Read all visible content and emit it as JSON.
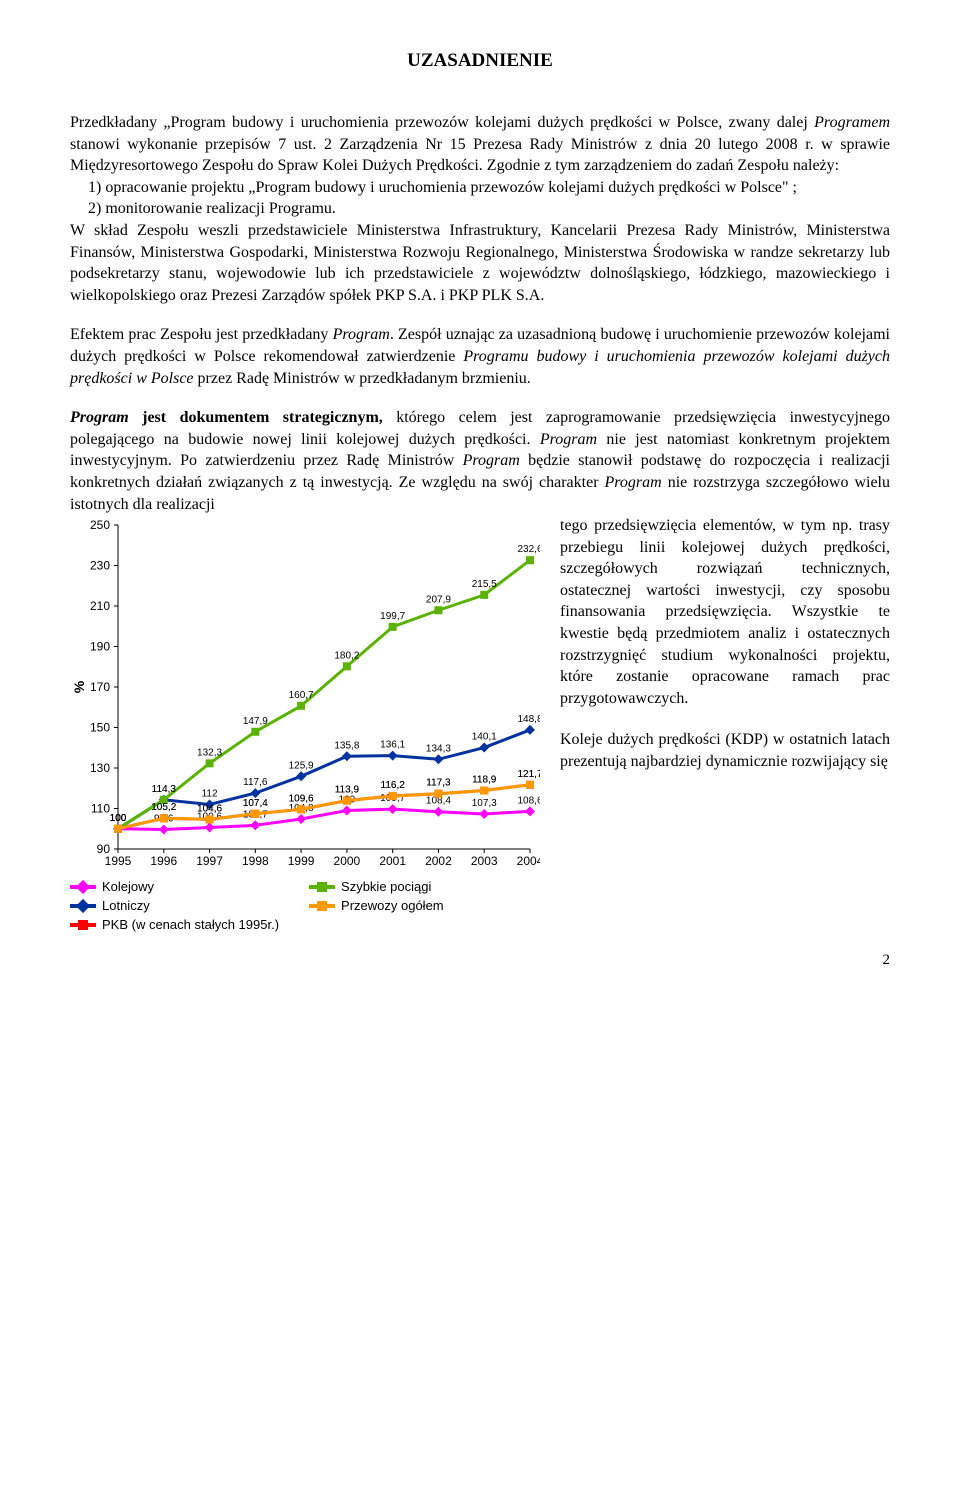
{
  "title": "UZASADNIENIE",
  "p1a": "Przedkładany „Program budowy i uruchomienia przewozów kolejami dużych prędkości w Polsce, zwany dalej ",
  "p1b": "Programem",
  "p1c": " stanowi wykonanie przepisów 7 ust. 2 Zarządzenia Nr 15 Prezesa Rady Ministrów z dnia 20 lutego 2008 r. w sprawie Międzyresortowego Zespołu do Spraw Kolei Dużych Prędkości. Zgodnie z tym zarządzeniem do zadań Zespołu należy:",
  "li1": "opracowanie projektu „Program budowy i uruchomienia przewozów kolejami dużych prędkości w Polsce\" ;",
  "li2": "monitorowanie realizacji Programu.",
  "p1d": "W skład Zespołu weszli przedstawiciele Ministerstwa Infrastruktury, Kancelarii Prezesa Rady Ministrów, Ministerstwa Finansów, Ministerstwa Gospodarki, Ministerstwa Rozwoju Regionalnego, Ministerstwa Środowiska w randze sekretarzy lub podsekretarzy stanu, wojewodowie lub ich przedstawiciele z województw dolnośląskiego, łódzkiego, mazowieckiego i wielkopolskiego oraz Prezesi Zarządów spółek PKP S.A. i PKP PLK S.A.",
  "p2a": "Efektem prac Zespołu jest przedkładany ",
  "p2b": "Program",
  "p2c": ". Zespół uznając za uzasadnioną budowę i uruchomienie przewozów kolejami  dużych prędkości w Polsce  rekomendował zatwierdzenie ",
  "p2d": "Programu budowy i uruchomienia przewozów kolejami dużych prędkości w Polsce",
  "p2e": " przez Radę Ministrów w przedkładanym  brzmieniu.",
  "p3a": "Program",
  "p3b": "  jest  dokumentem  strategicznym,",
  "p3c": "  którego  celem  jest  zaprogramowanie przedsięwzięcia  inwestycyjnego  polegającego  na  budowie  nowej  linii  kolejowej dużych prędkości. ",
  "p3d": "Program",
  "p3e": " nie jest natomiast konkretnym  projektem inwestycyjnym. Po zatwierdzeniu  przez  Radę  Ministrów  ",
  "p3f": "Program",
  "p3g": "  będzie  stanowił  podstawę do rozpoczęcia  i realizacji  konkretnych  działań  związanych  z tą inwestycją.  Ze względu na  swój   charakter ",
  "p3h": "Program",
  "p3i": "  nie  rozstrzyga  szczegółowo  wielu  istotnych  dla realizacji ",
  "side_a": "tego przedsięwzięcia elementów, w tym np. trasy przebiegu linii kolejowej dużych prędkości, szczegółowych rozwiązań technicznych, ostatecznej wartości inwestycji, czy sposobu finansowania przedsięwzięcia. Wszystkie te kwestie będą przedmiotem analiz i ostatecznych rozstrzygnięć studium wykonalności projektu, które zostanie opracowane ramach prac przygotowawczych.",
  "side_b": "Koleje dużych prędkości (KDP) w ostatnich latach prezentują najbardziej dynamicznie rozwijający się ",
  "page_num": "2",
  "chart": {
    "ylabel": "%",
    "ytick_min": 90,
    "ytick_max": 250,
    "ytick_step": 20,
    "x_labels": [
      "1995",
      "1996",
      "1997",
      "1998",
      "1999",
      "2000",
      "2001",
      "2002",
      "2003",
      "2004"
    ],
    "series": [
      {
        "name": "Kolejowy",
        "color": "#ff00ff",
        "marker": "diamond",
        "marker_color": "#ff00ff",
        "values": [
          100,
          99.6,
          100.6,
          101.7,
          104.8,
          109,
          109.7,
          108.4,
          107.3,
          108.6
        ]
      },
      {
        "name": "Lotniczy",
        "color": "#0033a0",
        "marker": "diamond",
        "marker_color": "#0033a0",
        "values": [
          100,
          114.3,
          112,
          117.6,
          125.9,
          135.8,
          136.1,
          134.3,
          140.1,
          148.8
        ]
      },
      {
        "name": "PKB (w cenach stałych 1995r.)",
        "color": "#ff0000",
        "marker": "square",
        "marker_color": "#ff0000",
        "values": [
          100,
          105.2,
          104.6,
          107.4,
          109.6,
          113.9,
          116.2,
          117.3,
          118.9,
          121.7
        ]
      },
      {
        "name": "Szybkie pociągi",
        "color": "#59b300",
        "marker": "square",
        "marker_color": "#59b300",
        "values": [
          100,
          114.3,
          132.3,
          147.9,
          160.7,
          180.2,
          199.7,
          207.9,
          215.5,
          232.6
        ]
      },
      {
        "name": "Przewozy ogółem",
        "color": "#ff9900",
        "marker": "square",
        "marker_color": "#ff9900",
        "values": [
          100,
          105.2,
          104.6,
          107.4,
          109.6,
          113.9,
          116.2,
          117.3,
          118.9,
          121.7
        ]
      }
    ],
    "legend_order": [
      "Kolejowy",
      "Szybkie pociągi",
      "Lotniczy",
      "Przewozy ogółem",
      "PKB (w cenach stałych 1995r.)"
    ]
  }
}
